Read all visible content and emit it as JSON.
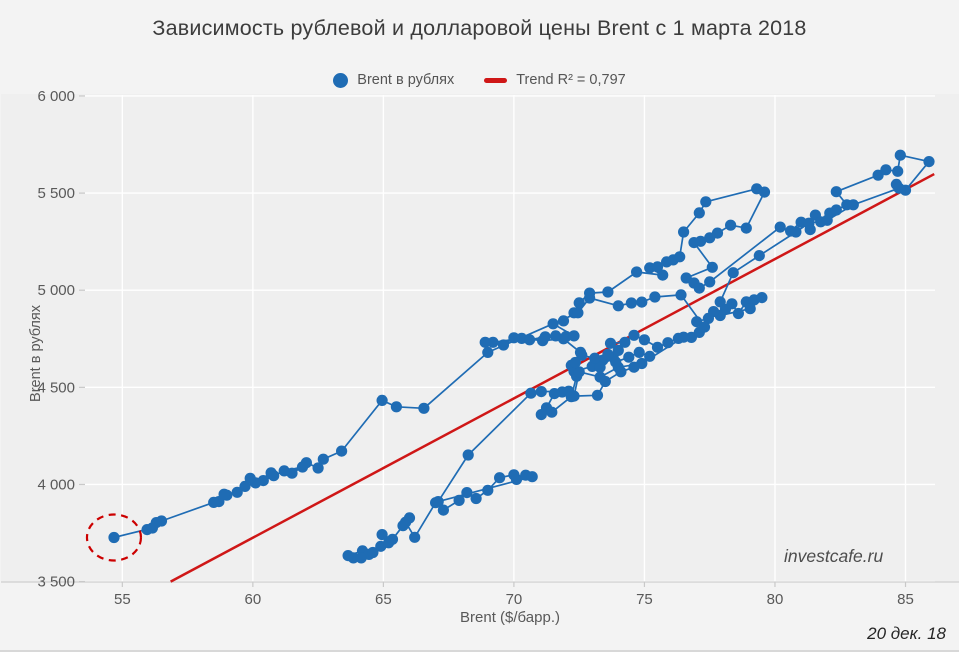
{
  "title": "Зависимость рублевой и долларовой цены Brent с 1 марта 2018",
  "watermark": "investcafe.ru",
  "date_note": "20 дек. 18",
  "legend": {
    "series_label": "Brent в рублях",
    "trend_label": "Trend R² = 0,797"
  },
  "colors": {
    "series": "#1f6cb4",
    "trend": "#cf1717",
    "highlight": "#cc0000",
    "plot_bg": "#efefef",
    "grid": "#ffffff",
    "axis_line": "#cfcfcf",
    "tick_mark": "#c9c9c9",
    "tick_text": "#595959"
  },
  "chart_data": {
    "type": "scatter",
    "title": "Зависимость рублевой и долларовой цены Brent с 1 марта 2018",
    "xlabel": "Brent ($/барр.)",
    "ylabel": "Brent в рублях",
    "xlim": [
      53.57,
      86.13
    ],
    "ylim": [
      3498,
      6005
    ],
    "xticks": [
      55,
      60,
      65,
      70,
      75,
      80,
      85
    ],
    "xtick_labels": [
      "55",
      "60",
      "65",
      "70",
      "75",
      "80",
      "85"
    ],
    "yticks": [
      3500,
      4000,
      4500,
      5000,
      5500,
      6000
    ],
    "ytick_labels": [
      "3 500",
      "4 000",
      "4 500",
      "5 000",
      "5 500",
      "6 000"
    ],
    "grid": true,
    "legend_position": "top-center",
    "series_name": "Brent в рублях",
    "trend": {
      "label": "Trend R² = 0,797",
      "r2": "0,797",
      "x1": 56.85,
      "y1": 3500,
      "x2": 86.1,
      "y2": 5598
    },
    "highlight_point": {
      "x": 54.68,
      "y": 3727
    },
    "points": [
      [
        63.85,
        3622
      ],
      [
        63.65,
        3634
      ],
      [
        64.2,
        3658
      ],
      [
        64.45,
        3640
      ],
      [
        64.15,
        3622
      ],
      [
        64.6,
        3650
      ],
      [
        64.9,
        3682
      ],
      [
        65.2,
        3700
      ],
      [
        64.95,
        3742
      ],
      [
        65.35,
        3718
      ],
      [
        65.75,
        3788
      ],
      [
        66.0,
        3828
      ],
      [
        65.85,
        3806
      ],
      [
        66.2,
        3728
      ],
      [
        67.0,
        3906
      ],
      [
        67.3,
        3868
      ],
      [
        67.9,
        3918
      ],
      [
        68.2,
        3958
      ],
      [
        68.55,
        3928
      ],
      [
        69.0,
        3970
      ],
      [
        69.45,
        4035
      ],
      [
        70.0,
        4050
      ],
      [
        70.1,
        4026
      ],
      [
        70.45,
        4048
      ],
      [
        70.7,
        4040
      ],
      [
        67.1,
        3912
      ],
      [
        68.25,
        4152
      ],
      [
        70.65,
        4470
      ],
      [
        71.05,
        4478
      ],
      [
        72.1,
        4480
      ],
      [
        71.85,
        4476
      ],
      [
        71.55,
        4468
      ],
      [
        71.25,
        4395
      ],
      [
        71.05,
        4360
      ],
      [
        71.45,
        4372
      ],
      [
        72.2,
        4452
      ],
      [
        72.4,
        4557
      ],
      [
        72.3,
        4582
      ],
      [
        73.0,
        4608
      ],
      [
        73.4,
        4640
      ],
      [
        73.3,
        4603
      ],
      [
        73.8,
        4655
      ],
      [
        74.0,
        4690
      ],
      [
        73.7,
        4727
      ],
      [
        74.25,
        4732
      ],
      [
        74.6,
        4768
      ],
      [
        75.0,
        4745
      ],
      [
        75.5,
        4706
      ],
      [
        75.9,
        4730
      ],
      [
        76.3,
        4752
      ],
      [
        76.8,
        4757
      ],
      [
        77.1,
        4783
      ],
      [
        76.5,
        4758
      ],
      [
        74.9,
        4623
      ],
      [
        74.0,
        4603
      ],
      [
        73.3,
        4553
      ],
      [
        72.5,
        4580
      ],
      [
        72.3,
        4455
      ],
      [
        73.2,
        4459
      ],
      [
        73.5,
        4530
      ],
      [
        74.1,
        4580
      ],
      [
        74.6,
        4604
      ],
      [
        75.2,
        4660
      ],
      [
        74.8,
        4680
      ],
      [
        74.4,
        4655
      ],
      [
        73.9,
        4630
      ],
      [
        73.6,
        4670
      ],
      [
        73.1,
        4650
      ],
      [
        72.6,
        4665
      ],
      [
        72.2,
        4613
      ],
      [
        72.35,
        4628
      ],
      [
        72.55,
        4680
      ],
      [
        71.9,
        4750
      ],
      [
        71.1,
        4740
      ],
      [
        70.3,
        4752
      ],
      [
        69.2,
        4732
      ],
      [
        68.9,
        4732
      ],
      [
        69.6,
        4718
      ],
      [
        70.0,
        4755
      ],
      [
        70.6,
        4745
      ],
      [
        71.2,
        4760
      ],
      [
        71.6,
        4765
      ],
      [
        72.0,
        4762
      ],
      [
        72.3,
        4765
      ],
      [
        71.5,
        4827
      ],
      [
        71.9,
        4842
      ],
      [
        72.3,
        4884
      ],
      [
        72.5,
        4935
      ],
      [
        72.9,
        4985
      ],
      [
        73.6,
        4991
      ],
      [
        74.7,
        5094
      ],
      [
        75.7,
        5078
      ],
      [
        75.2,
        5115
      ],
      [
        75.5,
        5120
      ],
      [
        75.85,
        5146
      ],
      [
        76.1,
        5156
      ],
      [
        76.35,
        5172
      ],
      [
        76.5,
        5300
      ],
      [
        77.1,
        5398
      ],
      [
        77.35,
        5455
      ],
      [
        79.3,
        5522
      ],
      [
        79.6,
        5505
      ],
      [
        78.9,
        5320
      ],
      [
        78.3,
        5335
      ],
      [
        77.8,
        5294
      ],
      [
        77.5,
        5270
      ],
      [
        77.15,
        5252
      ],
      [
        76.9,
        5245
      ],
      [
        77.6,
        5118
      ],
      [
        76.6,
        5063
      ],
      [
        76.9,
        5037
      ],
      [
        77.1,
        5011
      ],
      [
        77.5,
        5043
      ],
      [
        80.2,
        5325
      ],
      [
        80.6,
        5305
      ],
      [
        81.0,
        5350
      ],
      [
        81.35,
        5312
      ],
      [
        81.55,
        5387
      ],
      [
        81.75,
        5352
      ],
      [
        82.1,
        5397
      ],
      [
        82.35,
        5413
      ],
      [
        82.75,
        5440
      ],
      [
        82.35,
        5507
      ],
      [
        83.95,
        5592
      ],
      [
        84.25,
        5620
      ],
      [
        84.7,
        5612
      ],
      [
        84.8,
        5695
      ],
      [
        85.9,
        5662
      ],
      [
        85.0,
        5515
      ],
      [
        84.65,
        5545
      ],
      [
        84.75,
        5525
      ],
      [
        83.0,
        5440
      ],
      [
        82.0,
        5360
      ],
      [
        81.3,
        5345
      ],
      [
        80.8,
        5300
      ],
      [
        79.4,
        5178
      ],
      [
        78.4,
        5090
      ],
      [
        77.9,
        4940
      ],
      [
        78.1,
        4902
      ],
      [
        78.35,
        4930
      ],
      [
        78.6,
        4880
      ],
      [
        78.9,
        4940
      ],
      [
        79.2,
        4950
      ],
      [
        79.5,
        4962
      ],
      [
        79.05,
        4905
      ],
      [
        77.9,
        4870
      ],
      [
        77.65,
        4890
      ],
      [
        77.45,
        4855
      ],
      [
        77.0,
        4838
      ],
      [
        77.3,
        4810
      ],
      [
        76.4,
        4976
      ],
      [
        75.4,
        4965
      ],
      [
        74.9,
        4939
      ],
      [
        74.5,
        4934
      ],
      [
        74.0,
        4920
      ],
      [
        72.9,
        4960
      ],
      [
        72.45,
        4884
      ],
      [
        69.0,
        4680
      ],
      [
        66.55,
        4392
      ],
      [
        65.5,
        4400
      ],
      [
        64.95,
        4433
      ],
      [
        63.4,
        4172
      ],
      [
        62.7,
        4130
      ],
      [
        62.5,
        4085
      ],
      [
        62.05,
        4112
      ],
      [
        61.5,
        4058
      ],
      [
        61.9,
        4090
      ],
      [
        61.2,
        4070
      ],
      [
        60.8,
        4045
      ],
      [
        60.4,
        4020
      ],
      [
        60.7,
        4060
      ],
      [
        60.1,
        4008
      ],
      [
        59.7,
        3990
      ],
      [
        59.9,
        4032
      ],
      [
        59.4,
        3960
      ],
      [
        59.0,
        3945
      ],
      [
        58.7,
        3912
      ],
      [
        58.9,
        3950
      ],
      [
        58.5,
        3908
      ],
      [
        56.5,
        3812
      ],
      [
        56.3,
        3804
      ],
      [
        55.95,
        3768
      ],
      [
        56.15,
        3776
      ],
      [
        54.68,
        3727
      ]
    ]
  }
}
